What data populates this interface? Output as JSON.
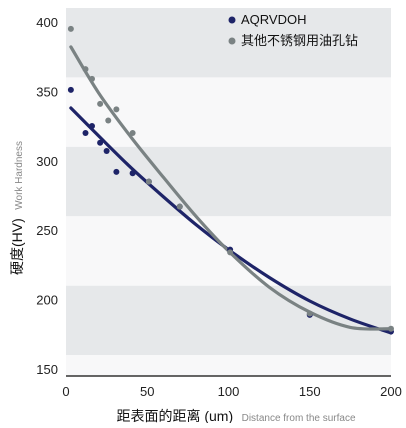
{
  "chart_data": {
    "type": "scatter",
    "x_label_main": "距表面的距离 (um)",
    "x_label_sub": "Distance from the surface",
    "y_label_main": "硬度(HV)",
    "y_label_sub": "Work Hardness",
    "xlim": [
      0,
      200
    ],
    "ylim": [
      145,
      410
    ],
    "x_ticks": [
      0,
      50,
      100,
      150,
      200
    ],
    "y_ticks": [
      150,
      200,
      250,
      300,
      350,
      400
    ],
    "background": "alternating horizontal bands",
    "legend_position": "top-right",
    "series": [
      {
        "name": "AQRVDOH",
        "color": "#1e2468",
        "points": [
          {
            "x": 3,
            "y": 351
          },
          {
            "x": 12,
            "y": 320
          },
          {
            "x": 16,
            "y": 325
          },
          {
            "x": 21,
            "y": 313
          },
          {
            "x": 25,
            "y": 307
          },
          {
            "x": 31,
            "y": 292
          },
          {
            "x": 41,
            "y": 291
          },
          {
            "x": 51,
            "y": 285
          },
          {
            "x": 70,
            "y": 267
          },
          {
            "x": 101,
            "y": 236
          },
          {
            "x": 150,
            "y": 189
          },
          {
            "x": 200,
            "y": 177
          }
        ],
        "trend": [
          {
            "x": 3,
            "y": 338
          },
          {
            "x": 20,
            "y": 318
          },
          {
            "x": 40,
            "y": 295
          },
          {
            "x": 60,
            "y": 274
          },
          {
            "x": 80,
            "y": 254
          },
          {
            "x": 100,
            "y": 236
          },
          {
            "x": 125,
            "y": 216
          },
          {
            "x": 150,
            "y": 199
          },
          {
            "x": 175,
            "y": 186
          },
          {
            "x": 200,
            "y": 176
          }
        ]
      },
      {
        "name": "其他不锈钢用油孔钻",
        "color": "#7a8283",
        "points": [
          {
            "x": 3,
            "y": 395
          },
          {
            "x": 12,
            "y": 366
          },
          {
            "x": 16,
            "y": 359
          },
          {
            "x": 21,
            "y": 341
          },
          {
            "x": 26,
            "y": 329
          },
          {
            "x": 31,
            "y": 337
          },
          {
            "x": 41,
            "y": 320
          },
          {
            "x": 51,
            "y": 285
          },
          {
            "x": 70,
            "y": 267
          },
          {
            "x": 101,
            "y": 234
          },
          {
            "x": 150,
            "y": 190
          },
          {
            "x": 200,
            "y": 179
          }
        ],
        "trend": [
          {
            "x": 3,
            "y": 382
          },
          {
            "x": 20,
            "y": 349
          },
          {
            "x": 40,
            "y": 317
          },
          {
            "x": 60,
            "y": 288
          },
          {
            "x": 80,
            "y": 260
          },
          {
            "x": 100,
            "y": 235
          },
          {
            "x": 125,
            "y": 209
          },
          {
            "x": 150,
            "y": 191
          },
          {
            "x": 175,
            "y": 180
          },
          {
            "x": 200,
            "y": 179
          }
        ]
      }
    ]
  },
  "colors": {
    "band_dark": "#e6e8ea",
    "band_light": "#f8f8f9",
    "axis_line": "#333333"
  }
}
